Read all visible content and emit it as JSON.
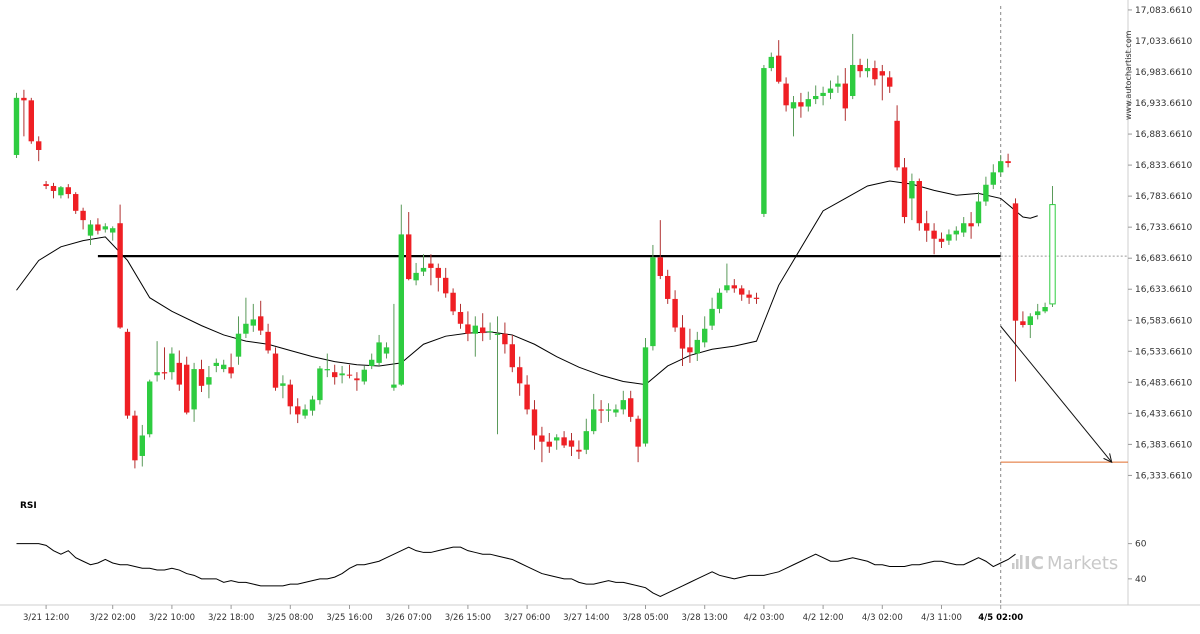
{
  "watermark": "www.autochartist.com",
  "brand": {
    "ic": "IC",
    "markets": "Markets",
    "color": "#c9c9c9"
  },
  "colors": {
    "up": "#2ecc40",
    "down": "#ef1f24",
    "wick": "#444444",
    "ma": "#000000",
    "level": "#000000",
    "forecast": "#e06c2a",
    "arrow": "#111111"
  },
  "chart_data": {
    "type": "candlestick",
    "y_ticks": [
      "17,083.6610",
      "17,033.6610",
      "16,983.6610",
      "16,933.6610",
      "16,883.6610",
      "16,833.6610",
      "16,783.6610",
      "16,733.6610",
      "16,683.6610",
      "16,633.6610",
      "16,583.6610",
      "16,533.6610",
      "16,483.6610",
      "16,433.6610",
      "16,383.6610",
      "16,333.6610"
    ],
    "y_tick_values": [
      17083.661,
      17033.661,
      16983.661,
      16933.661,
      16883.661,
      16833.661,
      16783.661,
      16733.661,
      16683.661,
      16633.661,
      16583.661,
      16533.661,
      16483.661,
      16433.661,
      16383.661,
      16333.661
    ],
    "ylim": [
      16315,
      17090
    ],
    "x_labels": [
      "3/21 12:00",
      "3/22 02:00",
      "3/22 10:00",
      "3/22 18:00",
      "3/25 08:00",
      "3/25 16:00",
      "3/26 07:00",
      "3/26 15:00",
      "3/27 06:00",
      "3/27 14:00",
      "3/28 05:00",
      "3/28 13:00",
      "4/2 03:00",
      "4/2 12:00",
      "4/3 02:00",
      "4/3 11:00",
      "4/5 02:00"
    ],
    "x_label_index": [
      4,
      13,
      21,
      29,
      37,
      45,
      53,
      61,
      69,
      77,
      85,
      93,
      101,
      109,
      117,
      125,
      133
    ],
    "highlight_label": "4/5 02:00",
    "support_level": {
      "value": 16687,
      "from_index": 11,
      "to_index": 133
    },
    "forecast": {
      "from_index": 133,
      "from_value": 16574,
      "to_index": 148,
      "to_value": 16355,
      "level": 16355
    },
    "candles": [
      [
        16850,
        16950,
        16845,
        16942
      ],
      [
        16942,
        16955,
        16880,
        16938
      ],
      [
        16938,
        16942,
        16868,
        16872
      ],
      [
        16872,
        16880,
        16840,
        16858
      ],
      [
        16803,
        16808,
        16795,
        16800
      ],
      [
        16800,
        16805,
        16780,
        16792
      ],
      [
        16785,
        16800,
        16780,
        16798
      ],
      [
        16798,
        16803,
        16780,
        16787
      ],
      [
        16787,
        16790,
        16755,
        16760
      ],
      [
        16760,
        16765,
        16730,
        16745
      ],
      [
        16720,
        16745,
        16705,
        16738
      ],
      [
        16738,
        16748,
        16722,
        16728
      ],
      [
        16730,
        16740,
        16725,
        16735
      ],
      [
        16725,
        16735,
        16712,
        16732
      ],
      [
        16740,
        16770,
        16570,
        16572
      ],
      [
        16565,
        16570,
        16425,
        16430
      ],
      [
        16430,
        16438,
        16345,
        16358
      ],
      [
        16365,
        16415,
        16348,
        16398
      ],
      [
        16400,
        16488,
        16395,
        16485
      ],
      [
        16495,
        16550,
        16485,
        16500
      ],
      [
        16500,
        16540,
        16488,
        16498
      ],
      [
        16500,
        16540,
        16488,
        16530
      ],
      [
        16515,
        16535,
        16470,
        16480
      ],
      [
        16512,
        16525,
        16432,
        16435
      ],
      [
        16440,
        16515,
        16420,
        16505
      ],
      [
        16505,
        16520,
        16468,
        16478
      ],
      [
        16480,
        16510,
        16458,
        16492
      ],
      [
        16510,
        16522,
        16500,
        16515
      ],
      [
        16505,
        16520,
        16500,
        16512
      ],
      [
        16508,
        16530,
        16490,
        16498
      ],
      [
        16525,
        16590,
        16512,
        16562
      ],
      [
        16562,
        16620,
        16555,
        16578
      ],
      [
        16575,
        16610,
        16565,
        16585
      ],
      [
        16590,
        16615,
        16560,
        16567
      ],
      [
        16565,
        16578,
        16530,
        16535
      ],
      [
        16530,
        16540,
        16470,
        16475
      ],
      [
        16478,
        16495,
        16458,
        16482
      ],
      [
        16480,
        16488,
        16432,
        16445
      ],
      [
        16445,
        16458,
        16418,
        16432
      ],
      [
        16430,
        16448,
        16425,
        16440
      ],
      [
        16438,
        16462,
        16430,
        16456
      ],
      [
        16455,
        16510,
        16448,
        16506
      ],
      [
        16503,
        16530,
        16492,
        16505
      ],
      [
        16500,
        16512,
        16480,
        16492
      ],
      [
        16495,
        16510,
        16482,
        16498
      ],
      [
        16496,
        16512,
        16490,
        16495
      ],
      [
        16490,
        16500,
        16470,
        16487
      ],
      [
        16485,
        16510,
        16480,
        16504
      ],
      [
        16510,
        16530,
        16505,
        16520
      ],
      [
        16515,
        16560,
        16510,
        16548
      ],
      [
        16530,
        16548,
        16522,
        16540
      ],
      [
        16475,
        16610,
        16470,
        16480
      ],
      [
        16480,
        16770,
        16478,
        16722
      ],
      [
        16722,
        16758,
        16648,
        16650
      ],
      [
        16648,
        16676,
        16640,
        16660
      ],
      [
        16662,
        16690,
        16655,
        16668
      ],
      [
        16675,
        16690,
        16640,
        16668
      ],
      [
        16668,
        16675,
        16630,
        16652
      ],
      [
        16652,
        16668,
        16620,
        16627
      ],
      [
        16628,
        16635,
        16592,
        16598
      ],
      [
        16597,
        16610,
        16570,
        16578
      ],
      [
        16577,
        16598,
        16550,
        16562
      ],
      [
        16562,
        16590,
        16525,
        16575
      ],
      [
        16572,
        16595,
        16550,
        16563
      ],
      [
        16565,
        16580,
        16552,
        16566
      ],
      [
        16560,
        16590,
        16400,
        16562
      ],
      [
        16562,
        16580,
        16530,
        16545
      ],
      [
        16545,
        16560,
        16500,
        16508
      ],
      [
        16508,
        16525,
        16462,
        16482
      ],
      [
        16480,
        16495,
        16432,
        16440
      ],
      [
        16440,
        16455,
        16375,
        16398
      ],
      [
        16398,
        16412,
        16355,
        16388
      ],
      [
        16388,
        16402,
        16370,
        16380
      ],
      [
        16390,
        16400,
        16375,
        16395
      ],
      [
        16395,
        16405,
        16378,
        16382
      ],
      [
        16390,
        16402,
        16365,
        16380
      ],
      [
        16375,
        16390,
        16360,
        16372
      ],
      [
        16375,
        16425,
        16368,
        16405
      ],
      [
        16405,
        16465,
        16400,
        16440
      ],
      [
        16440,
        16455,
        16418,
        16438
      ],
      [
        16438,
        16450,
        16420,
        16440
      ],
      [
        16435,
        16448,
        16428,
        16440
      ],
      [
        16440,
        16470,
        16432,
        16455
      ],
      [
        16458,
        16470,
        16420,
        16428
      ],
      [
        16425,
        16430,
        16355,
        16380
      ],
      [
        16385,
        16555,
        16380,
        16540
      ],
      [
        16542,
        16705,
        16535,
        16685
      ],
      [
        16685,
        16745,
        16650,
        16655
      ],
      [
        16655,
        16665,
        16610,
        16618
      ],
      [
        16618,
        16632,
        16565,
        16572
      ],
      [
        16572,
        16592,
        16510,
        16538
      ],
      [
        16540,
        16570,
        16515,
        16532
      ],
      [
        16530,
        16565,
        16518,
        16552
      ],
      [
        16548,
        16590,
        16540,
        16570
      ],
      [
        16575,
        16620,
        16568,
        16602
      ],
      [
        16602,
        16635,
        16595,
        16628
      ],
      [
        16632,
        16675,
        16628,
        16640
      ],
      [
        16640,
        16650,
        16628,
        16635
      ],
      [
        16635,
        16640,
        16615,
        16625
      ],
      [
        16625,
        16632,
        16610,
        16620
      ],
      [
        16620,
        16628,
        16610,
        16618
      ],
      [
        16755,
        16995,
        16750,
        16990
      ],
      [
        16990,
        17015,
        16985,
        17008
      ],
      [
        17010,
        17035,
        16965,
        16968
      ],
      [
        16965,
        16975,
        16920,
        16930
      ],
      [
        16925,
        16945,
        16880,
        16935
      ],
      [
        16935,
        16950,
        16910,
        16928
      ],
      [
        16928,
        16952,
        16920,
        16940
      ],
      [
        16940,
        16962,
        16932,
        16945
      ],
      [
        16945,
        16960,
        16930,
        16950
      ],
      [
        16950,
        16970,
        16940,
        16957
      ],
      [
        16960,
        16978,
        16950,
        16965
      ],
      [
        16965,
        16990,
        16905,
        16925
      ],
      [
        16945,
        17045,
        16940,
        16995
      ],
      [
        16995,
        17005,
        16975,
        16985
      ],
      [
        16985,
        17005,
        16975,
        16990
      ],
      [
        16990,
        17002,
        16962,
        16972
      ],
      [
        16985,
        16995,
        16938,
        16978
      ],
      [
        16975,
        16985,
        16950,
        16960
      ],
      [
        16905,
        16930,
        16825,
        16830
      ],
      [
        16830,
        16845,
        16740,
        16750
      ],
      [
        16780,
        16820,
        16745,
        16808
      ],
      [
        16808,
        16812,
        16728,
        16740
      ],
      [
        16740,
        16760,
        16710,
        16728
      ],
      [
        16728,
        16740,
        16690,
        16715
      ],
      [
        16715,
        16725,
        16700,
        16710
      ],
      [
        16712,
        16730,
        16705,
        16722
      ],
      [
        16722,
        16735,
        16712,
        16728
      ],
      [
        16725,
        16750,
        16718,
        16740
      ],
      [
        16740,
        16758,
        16715,
        16735
      ],
      [
        16740,
        16790,
        16735,
        16775
      ],
      [
        16775,
        16815,
        16768,
        16802
      ],
      [
        16802,
        16835,
        16795,
        16822
      ],
      [
        16822,
        16850,
        16815,
        16840
      ],
      [
        16840,
        16852,
        16830,
        16837
      ],
      [
        16772,
        16780,
        16485,
        16583
      ],
      [
        16582,
        16598,
        16572,
        16576
      ],
      [
        16576,
        16595,
        16555,
        16590
      ],
      [
        16592,
        16610,
        16585,
        16598
      ],
      [
        16598,
        16612,
        16595,
        16605
      ],
      [
        16610,
        16800,
        16605,
        16770
      ]
    ],
    "moving_average": [
      [
        0,
        16632
      ],
      [
        3,
        16680
      ],
      [
        6,
        16702
      ],
      [
        9,
        16712
      ],
      [
        12,
        16718
      ],
      [
        15,
        16680
      ],
      [
        18,
        16620
      ],
      [
        21,
        16598
      ],
      [
        25,
        16575
      ],
      [
        28,
        16560
      ],
      [
        31,
        16550
      ],
      [
        34,
        16545
      ],
      [
        37,
        16535
      ],
      [
        40,
        16525
      ],
      [
        43,
        16517
      ],
      [
        46,
        16512
      ],
      [
        49,
        16510
      ],
      [
        52,
        16515
      ],
      [
        55,
        16545
      ],
      [
        58,
        16558
      ],
      [
        61,
        16563
      ],
      [
        64,
        16565
      ],
      [
        67,
        16560
      ],
      [
        70,
        16545
      ],
      [
        73,
        16525
      ],
      [
        76,
        16508
      ],
      [
        79,
        16495
      ],
      [
        82,
        16485
      ],
      [
        85,
        16480
      ],
      [
        88,
        16510
      ],
      [
        91,
        16527
      ],
      [
        94,
        16537
      ],
      [
        97,
        16542
      ],
      [
        100,
        16550
      ],
      [
        103,
        16640
      ],
      [
        106,
        16700
      ],
      [
        109,
        16760
      ],
      [
        112,
        16780
      ],
      [
        115,
        16800
      ],
      [
        118,
        16808
      ],
      [
        121,
        16803
      ],
      [
        124,
        16793
      ],
      [
        127,
        16785
      ],
      [
        130,
        16788
      ],
      [
        133,
        16780
      ],
      [
        136,
        16750
      ],
      [
        137,
        16748
      ],
      [
        138,
        16752
      ]
    ],
    "rsi": {
      "label": "RSI",
      "ticks": [
        "60",
        "40"
      ],
      "tick_values": [
        60,
        40
      ],
      "ylim": [
        28,
        70
      ],
      "values": [
        60,
        60,
        60,
        60,
        59,
        56,
        54,
        56,
        52,
        50,
        48,
        49,
        51,
        49,
        48,
        48,
        47,
        46,
        46,
        45,
        45,
        46,
        45,
        43,
        42,
        40,
        40,
        40,
        38,
        39,
        38,
        38,
        37,
        36,
        36,
        36,
        36,
        37,
        37,
        38,
        39,
        40,
        40,
        41,
        43,
        46,
        48,
        48,
        49,
        50,
        52,
        54,
        56,
        58,
        56,
        55,
        55,
        56,
        57,
        58,
        58,
        56,
        55,
        54,
        54,
        53,
        52,
        51,
        49,
        47,
        45,
        43,
        42,
        41,
        40,
        40,
        38,
        37,
        37,
        38,
        39,
        38,
        38,
        37,
        36,
        35,
        32,
        30,
        32,
        34,
        36,
        38,
        40,
        42,
        44,
        42,
        41,
        40,
        41,
        42,
        42,
        42,
        43,
        44,
        46,
        48,
        50,
        52,
        54,
        52,
        50,
        50,
        51,
        52,
        51,
        50,
        48,
        48,
        47,
        47,
        47,
        48,
        48,
        49,
        50,
        50,
        49,
        48,
        48,
        50,
        52,
        50,
        47,
        49,
        51,
        54
      ]
    }
  }
}
